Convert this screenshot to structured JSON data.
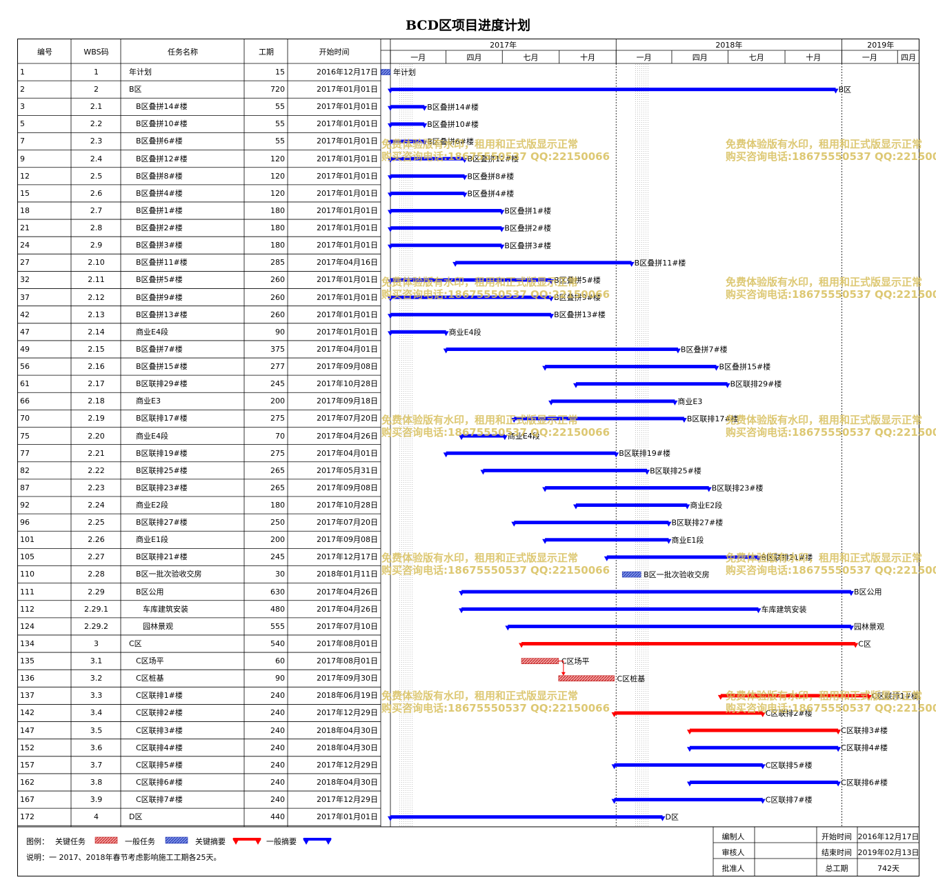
{
  "title": "BCD区项目进度计划",
  "columns": {
    "id": "编号",
    "wbs": "WBS码",
    "name": "任务名称",
    "duration": "工期",
    "start": "开始时间"
  },
  "timescale": {
    "years": [
      "2017年",
      "2018年",
      "2019年"
    ],
    "quarters": [
      "一月",
      "四月",
      "七月",
      "十月",
      "一月",
      "四月",
      "七月",
      "十月",
      "一月",
      "四月"
    ]
  },
  "watermark": {
    "line1": "免费体验版有水印，租用和正式版显示正常",
    "line2": "购买咨询电话:18675550537 QQ:22150066"
  },
  "legend": {
    "label": "图例：",
    "items": [
      "关键任务",
      "一般任务",
      "关键摘要",
      "一般摘要"
    ],
    "note": "说明：一 2017、2018年春节考虑影响施工工期各25天。"
  },
  "signoff": {
    "preparer": "编制人",
    "reviewer": "审核人",
    "approver": "批准人",
    "start_label": "开始时间",
    "start_value": "2016年12月17日",
    "end_label": "结束时间",
    "end_value": "2019年02月13日",
    "total_label": "总工期",
    "total_value": "742天"
  },
  "colors": {
    "critical": "#ff0000",
    "normal": "#0000ff",
    "hatch_critical": "#e05050",
    "hatch_normal": "#3050d0"
  },
  "chart_data": {
    "type": "gantt",
    "time_axis": {
      "start": "2016-12-17",
      "end": "2019-03-31"
    },
    "tasks": [
      {
        "id": "1",
        "wbs": "1",
        "name": "年计划",
        "duration": "15",
        "start": "2016年12月17日",
        "start_date": "2016-12-17",
        "days": 15,
        "kind": "task-normal",
        "indent": 0
      },
      {
        "id": "2",
        "wbs": "2",
        "name": "B区",
        "duration": "720",
        "start": "2017年01月01日",
        "start_date": "2017-01-01",
        "days": 720,
        "kind": "summary-normal",
        "indent": 0
      },
      {
        "id": "3",
        "wbs": "2.1",
        "name": "B区叠拼14#楼",
        "duration": "55",
        "start": "2017年01月01日",
        "start_date": "2017-01-01",
        "days": 55,
        "kind": "summary-normal",
        "indent": 1
      },
      {
        "id": "5",
        "wbs": "2.2",
        "name": "B区叠拼10#楼",
        "duration": "55",
        "start": "2017年01月01日",
        "start_date": "2017-01-01",
        "days": 55,
        "kind": "summary-normal",
        "indent": 1
      },
      {
        "id": "7",
        "wbs": "2.3",
        "name": "B区叠拼6#楼",
        "duration": "55",
        "start": "2017年01月01日",
        "start_date": "2017-01-01",
        "days": 55,
        "kind": "summary-normal",
        "indent": 1
      },
      {
        "id": "9",
        "wbs": "2.4",
        "name": "B区叠拼12#楼",
        "duration": "120",
        "start": "2017年01月01日",
        "start_date": "2017-01-01",
        "days": 120,
        "kind": "summary-normal",
        "indent": 1
      },
      {
        "id": "12",
        "wbs": "2.5",
        "name": "B区叠拼8#楼",
        "duration": "120",
        "start": "2017年01月01日",
        "start_date": "2017-01-01",
        "days": 120,
        "kind": "summary-normal",
        "indent": 1
      },
      {
        "id": "15",
        "wbs": "2.6",
        "name": "B区叠拼4#楼",
        "duration": "120",
        "start": "2017年01月01日",
        "start_date": "2017-01-01",
        "days": 120,
        "kind": "summary-normal",
        "indent": 1
      },
      {
        "id": "18",
        "wbs": "2.7",
        "name": "B区叠拼1#楼",
        "duration": "180",
        "start": "2017年01月01日",
        "start_date": "2017-01-01",
        "days": 180,
        "kind": "summary-normal",
        "indent": 1
      },
      {
        "id": "21",
        "wbs": "2.8",
        "name": "B区叠拼2#楼",
        "duration": "180",
        "start": "2017年01月01日",
        "start_date": "2017-01-01",
        "days": 180,
        "kind": "summary-normal",
        "indent": 1
      },
      {
        "id": "24",
        "wbs": "2.9",
        "name": "B区叠拼3#楼",
        "duration": "180",
        "start": "2017年01月01日",
        "start_date": "2017-01-01",
        "days": 180,
        "kind": "summary-normal",
        "indent": 1
      },
      {
        "id": "27",
        "wbs": "2.10",
        "name": "B区叠拼11#楼",
        "duration": "285",
        "start": "2017年04月16日",
        "start_date": "2017-04-16",
        "days": 285,
        "kind": "summary-normal",
        "indent": 1
      },
      {
        "id": "32",
        "wbs": "2.11",
        "name": "B区叠拼5#楼",
        "duration": "260",
        "start": "2017年01月01日",
        "start_date": "2017-01-01",
        "days": 260,
        "kind": "summary-normal",
        "indent": 1
      },
      {
        "id": "37",
        "wbs": "2.12",
        "name": "B区叠拼9#楼",
        "duration": "260",
        "start": "2017年01月01日",
        "start_date": "2017-01-01",
        "days": 260,
        "kind": "summary-normal",
        "indent": 1
      },
      {
        "id": "42",
        "wbs": "2.13",
        "name": "B区叠拼13#楼",
        "duration": "260",
        "start": "2017年01月01日",
        "start_date": "2017-01-01",
        "days": 260,
        "kind": "summary-normal",
        "indent": 1
      },
      {
        "id": "47",
        "wbs": "2.14",
        "name": "商业E4段",
        "duration": "90",
        "start": "2017年01月01日",
        "start_date": "2017-01-01",
        "days": 90,
        "kind": "summary-normal",
        "indent": 1
      },
      {
        "id": "49",
        "wbs": "2.15",
        "name": "B区叠拼7#楼",
        "duration": "375",
        "start": "2017年04月01日",
        "start_date": "2017-04-01",
        "days": 375,
        "kind": "summary-normal",
        "indent": 1
      },
      {
        "id": "56",
        "wbs": "2.16",
        "name": "B区叠拼15#楼",
        "duration": "277",
        "start": "2017年09月08日",
        "start_date": "2017-09-08",
        "days": 277,
        "kind": "summary-normal",
        "indent": 1
      },
      {
        "id": "61",
        "wbs": "2.17",
        "name": "B区联排29#楼",
        "duration": "245",
        "start": "2017年10月28日",
        "start_date": "2017-10-28",
        "days": 245,
        "kind": "summary-normal",
        "indent": 1
      },
      {
        "id": "66",
        "wbs": "2.18",
        "name": "商业E3",
        "duration": "200",
        "start": "2017年09月18日",
        "start_date": "2017-09-18",
        "days": 200,
        "kind": "summary-normal",
        "indent": 1
      },
      {
        "id": "70",
        "wbs": "2.19",
        "name": "B区联排17#楼",
        "duration": "275",
        "start": "2017年07月20日",
        "start_date": "2017-07-20",
        "days": 275,
        "kind": "summary-normal",
        "indent": 1
      },
      {
        "id": "75",
        "wbs": "2.20",
        "name": "商业E4段",
        "duration": "70",
        "start": "2017年04月26日",
        "start_date": "2017-04-26",
        "days": 70,
        "kind": "summary-normal",
        "indent": 1
      },
      {
        "id": "77",
        "wbs": "2.21",
        "name": "B区联排19#楼",
        "duration": "275",
        "start": "2017年04月01日",
        "start_date": "2017-04-01",
        "days": 275,
        "kind": "summary-normal",
        "indent": 1
      },
      {
        "id": "82",
        "wbs": "2.22",
        "name": "B区联排25#楼",
        "duration": "265",
        "start": "2017年05月31日",
        "start_date": "2017-05-31",
        "days": 265,
        "kind": "summary-normal",
        "indent": 1
      },
      {
        "id": "87",
        "wbs": "2.23",
        "name": "B区联排23#楼",
        "duration": "265",
        "start": "2017年09月08日",
        "start_date": "2017-09-08",
        "days": 265,
        "kind": "summary-normal",
        "indent": 1
      },
      {
        "id": "92",
        "wbs": "2.24",
        "name": "商业E2段",
        "duration": "180",
        "start": "2017年10月28日",
        "start_date": "2017-10-28",
        "days": 180,
        "kind": "summary-normal",
        "indent": 1
      },
      {
        "id": "96",
        "wbs": "2.25",
        "name": "B区联排27#楼",
        "duration": "250",
        "start": "2017年07月20日",
        "start_date": "2017-07-20",
        "days": 250,
        "kind": "summary-normal",
        "indent": 1
      },
      {
        "id": "101",
        "wbs": "2.26",
        "name": "商业E1段",
        "duration": "200",
        "start": "2017年09月08日",
        "start_date": "2017-09-08",
        "days": 200,
        "kind": "summary-normal",
        "indent": 1
      },
      {
        "id": "105",
        "wbs": "2.27",
        "name": "B区联排21#楼",
        "duration": "245",
        "start": "2017年12月17日",
        "start_date": "2017-12-17",
        "days": 245,
        "kind": "summary-normal",
        "indent": 1
      },
      {
        "id": "110",
        "wbs": "2.28",
        "name": "B区一批次验收交房",
        "duration": "30",
        "start": "2018年01月11日",
        "start_date": "2018-01-11",
        "days": 30,
        "kind": "task-normal",
        "indent": 1
      },
      {
        "id": "111",
        "wbs": "2.29",
        "name": "B区公用",
        "duration": "630",
        "start": "2017年04月26日",
        "start_date": "2017-04-26",
        "days": 630,
        "kind": "summary-normal",
        "indent": 1
      },
      {
        "id": "112",
        "wbs": "2.29.1",
        "name": "车库建筑安装",
        "duration": "480",
        "start": "2017年04月26日",
        "start_date": "2017-04-26",
        "days": 480,
        "kind": "summary-normal",
        "indent": 2
      },
      {
        "id": "124",
        "wbs": "2.29.2",
        "name": "园林景观",
        "duration": "555",
        "start": "2017年07月10日",
        "start_date": "2017-07-10",
        "days": 555,
        "kind": "summary-normal",
        "indent": 2
      },
      {
        "id": "134",
        "wbs": "3",
        "name": "C区",
        "duration": "540",
        "start": "2017年08月01日",
        "start_date": "2017-08-01",
        "days": 540,
        "kind": "summary-critical",
        "indent": 0
      },
      {
        "id": "135",
        "wbs": "3.1",
        "name": "C区场平",
        "duration": "60",
        "start": "2017年08月01日",
        "start_date": "2017-08-01",
        "days": 60,
        "kind": "task-critical",
        "indent": 1
      },
      {
        "id": "136",
        "wbs": "3.2",
        "name": "C区桩基",
        "duration": "90",
        "start": "2017年09月30日",
        "start_date": "2017-09-30",
        "days": 90,
        "kind": "task-critical",
        "indent": 1
      },
      {
        "id": "137",
        "wbs": "3.3",
        "name": "C区联排1#楼",
        "duration": "240",
        "start": "2018年06月19日",
        "start_date": "2018-06-19",
        "days": 240,
        "kind": "summary-critical",
        "indent": 1
      },
      {
        "id": "142",
        "wbs": "3.4",
        "name": "C区联排2#楼",
        "duration": "240",
        "start": "2017年12月29日",
        "start_date": "2017-12-29",
        "days": 240,
        "kind": "summary-critical",
        "indent": 1
      },
      {
        "id": "147",
        "wbs": "3.5",
        "name": "C区联排3#楼",
        "duration": "240",
        "start": "2018年04月30日",
        "start_date": "2018-04-30",
        "days": 240,
        "kind": "summary-critical",
        "indent": 1
      },
      {
        "id": "152",
        "wbs": "3.6",
        "name": "C区联排4#楼",
        "duration": "240",
        "start": "2018年04月30日",
        "start_date": "2018-04-30",
        "days": 240,
        "kind": "summary-normal",
        "indent": 1
      },
      {
        "id": "157",
        "wbs": "3.7",
        "name": "C区联排5#楼",
        "duration": "240",
        "start": "2017年12月29日",
        "start_date": "2017-12-29",
        "days": 240,
        "kind": "summary-normal",
        "indent": 1
      },
      {
        "id": "162",
        "wbs": "3.8",
        "name": "C区联排6#楼",
        "duration": "240",
        "start": "2018年04月30日",
        "start_date": "2018-04-30",
        "days": 240,
        "kind": "summary-normal",
        "indent": 1
      },
      {
        "id": "167",
        "wbs": "3.9",
        "name": "C区联排7#楼",
        "duration": "240",
        "start": "2017年12月29日",
        "start_date": "2017-12-29",
        "days": 240,
        "kind": "summary-normal",
        "indent": 1
      },
      {
        "id": "172",
        "wbs": "4",
        "name": "D区",
        "duration": "440",
        "start": "2017年01月01日",
        "start_date": "2017-01-01",
        "days": 440,
        "kind": "summary-normal",
        "indent": 0
      }
    ]
  }
}
